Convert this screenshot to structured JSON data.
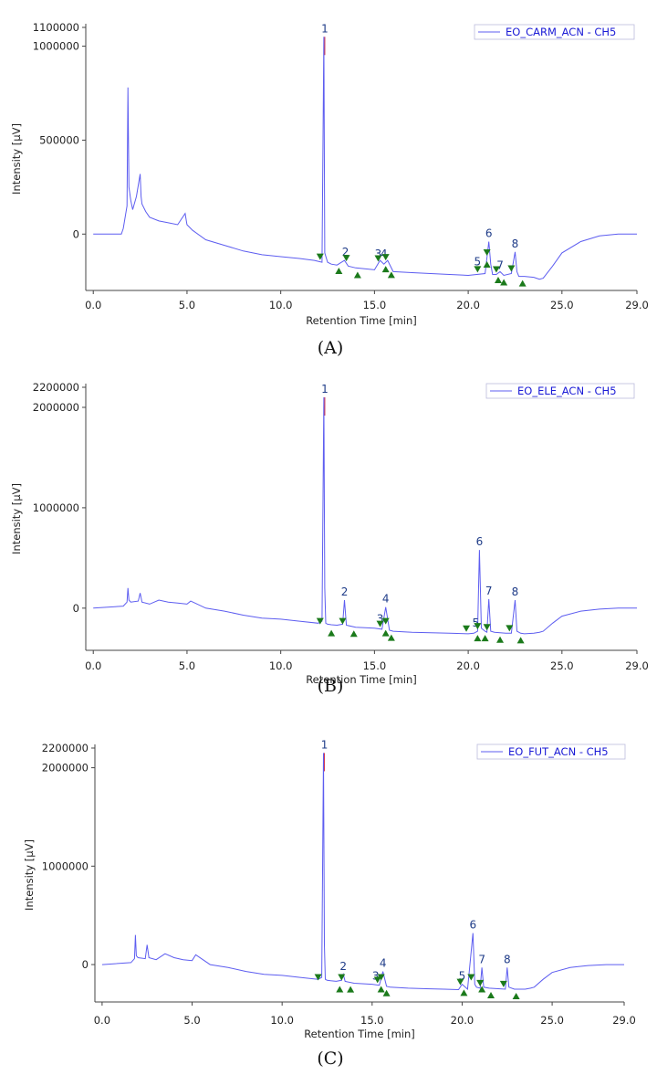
{
  "chart_data": [
    {
      "type": "line",
      "series": [
        {
          "name": "EO_CARM_ACN - CH5",
          "x": [
            0,
            1.5,
            1.6,
            1.8,
            1.85,
            1.9,
            2.0,
            2.1,
            2.3,
            2.5,
            2.55,
            2.6,
            2.8,
            3.0,
            3.5,
            4.0,
            4.5,
            4.9,
            5.0,
            5.3,
            6,
            7,
            8,
            9,
            10,
            11,
            11.8,
            12.0,
            12.2,
            12.3,
            12.35,
            12.5,
            12.7,
            13,
            13.4,
            13.6,
            14,
            15,
            15.3,
            15.5,
            15.7,
            16,
            17,
            18,
            19,
            20,
            20.9,
            21.1,
            21.2,
            21.3,
            21.5,
            21.7,
            21.9,
            22.3,
            22.5,
            22.6,
            22.7,
            23,
            23.5,
            23.8,
            24.0,
            24.5,
            25,
            26,
            27,
            28,
            29.0
          ],
          "y": [
            0,
            0,
            30000,
            150000,
            780000,
            250000,
            180000,
            130000,
            200000,
            320000,
            200000,
            160000,
            120000,
            90000,
            70000,
            60000,
            50000,
            110000,
            50000,
            20000,
            -30000,
            -60000,
            -90000,
            -110000,
            -120000,
            -130000,
            -140000,
            -145000,
            -150000,
            1050000,
            -100000,
            -150000,
            -160000,
            -165000,
            -140000,
            -170000,
            -180000,
            -190000,
            -140000,
            -160000,
            -140000,
            -200000,
            -205000,
            -210000,
            -215000,
            -220000,
            -210000,
            -40000,
            -160000,
            -215000,
            -215000,
            -200000,
            -220000,
            -210000,
            -95000,
            -200000,
            -225000,
            -225000,
            -230000,
            -240000,
            -235000,
            -170000,
            -100000,
            -40000,
            -10000,
            0,
            0
          ]
        }
      ],
      "peak_labels": [
        {
          "label": "1",
          "x": 12.35,
          "y": 1050000
        },
        {
          "label": "2",
          "x": 13.45,
          "y": -140000
        },
        {
          "label": "3",
          "x": 15.2,
          "y": -150000
        },
        {
          "label": "4",
          "x": 15.5,
          "y": -150000
        },
        {
          "label": "5",
          "x": 20.5,
          "y": -190000
        },
        {
          "label": "6",
          "x": 21.1,
          "y": -40000
        },
        {
          "label": "7",
          "x": 21.7,
          "y": -210000
        },
        {
          "label": "8",
          "x": 22.5,
          "y": -95000
        }
      ],
      "markers_down": [
        12.1,
        13.5,
        15.2,
        15.6,
        20.5,
        21.0,
        21.5,
        22.3
      ],
      "markers_up": [
        13.1,
        14.1,
        15.6,
        15.9,
        21.0,
        21.6,
        21.9,
        22.9
      ],
      "x_ticks": [
        {
          "value": 0,
          "label": "0.0"
        },
        {
          "value": 5,
          "label": "5.0"
        },
        {
          "value": 10,
          "label": "10.0"
        },
        {
          "value": 15,
          "label": "15.0"
        },
        {
          "value": 20,
          "label": "20.0"
        },
        {
          "value": 25,
          "label": "25.0"
        },
        {
          "value": 29,
          "label": "29.0"
        }
      ],
      "y_ticks": [
        {
          "value": 0,
          "label": "0"
        },
        {
          "value": 500000,
          "label": "500000"
        },
        {
          "value": 1000000,
          "label": "1000000"
        },
        {
          "value": 1100000,
          "label": "1100000"
        }
      ],
      "xlim": [
        -0.4,
        29.0
      ],
      "ylim": [
        -300000,
        1100000
      ],
      "xlabel": "Retention Time [min]",
      "ylabel": "Intensity [µV]",
      "caption": "(A)",
      "color": "#5d5df0",
      "peak_color": "#d2344a",
      "marker_color": "#1b7a1b"
    },
    {
      "type": "line",
      "series": [
        {
          "name": "EO_ELE_ACN - CH5",
          "x": [
            0,
            1.6,
            1.8,
            1.85,
            1.9,
            2.0,
            2.4,
            2.5,
            2.6,
            3,
            3.5,
            4,
            4.5,
            5,
            5.2,
            6,
            7,
            8,
            9,
            10,
            11,
            12,
            12.2,
            12.3,
            12.35,
            12.4,
            12.5,
            12.7,
            13,
            13.3,
            13.4,
            13.5,
            14,
            15,
            15.4,
            15.6,
            15.8,
            16,
            17,
            18,
            19,
            20,
            20.3,
            20.5,
            20.6,
            20.7,
            20.9,
            21.0,
            21.1,
            21.2,
            21.4,
            21.7,
            22,
            22.3,
            22.5,
            22.6,
            22.8,
            23,
            23.5,
            23.8,
            24.0,
            24.5,
            25,
            26,
            27,
            28,
            29.0
          ],
          "y": [
            0,
            20000,
            60000,
            200000,
            80000,
            60000,
            70000,
            150000,
            60000,
            40000,
            80000,
            60000,
            50000,
            40000,
            70000,
            0,
            -30000,
            -70000,
            -100000,
            -110000,
            -130000,
            -150000,
            -130000,
            2100000,
            200000,
            -150000,
            -160000,
            -165000,
            -170000,
            -160000,
            80000,
            -170000,
            -190000,
            -200000,
            -210000,
            10000,
            -220000,
            -230000,
            -240000,
            -245000,
            -250000,
            -255000,
            -250000,
            -230000,
            580000,
            -200000,
            -230000,
            -240000,
            90000,
            -230000,
            -240000,
            -245000,
            -250000,
            -250000,
            80000,
            -230000,
            -250000,
            -255000,
            -250000,
            -240000,
            -230000,
            -150000,
            -80000,
            -30000,
            -10000,
            0,
            0
          ]
        }
      ],
      "peak_labels": [
        {
          "label": "1",
          "x": 12.35,
          "y": 2100000
        },
        {
          "label": "2",
          "x": 13.4,
          "y": 80000
        },
        {
          "label": "3",
          "x": 15.3,
          "y": -190000
        },
        {
          "label": "4",
          "x": 15.6,
          "y": 10000
        },
        {
          "label": "5",
          "x": 20.4,
          "y": -230000
        },
        {
          "label": "6",
          "x": 20.6,
          "y": 580000
        },
        {
          "label": "7",
          "x": 21.1,
          "y": 90000
        },
        {
          "label": "8",
          "x": 22.5,
          "y": 80000
        }
      ],
      "markers_down": [
        12.1,
        13.3,
        15.3,
        15.6,
        19.9,
        20.5,
        21.0,
        22.2
      ],
      "markers_up": [
        12.7,
        13.9,
        15.6,
        15.9,
        20.5,
        20.9,
        21.7,
        22.8
      ],
      "x_ticks": [
        {
          "value": 0,
          "label": "0.0"
        },
        {
          "value": 5,
          "label": "5.0"
        },
        {
          "value": 10,
          "label": "10.0"
        },
        {
          "value": 15,
          "label": "15.0"
        },
        {
          "value": 20,
          "label": "20.0"
        },
        {
          "value": 25,
          "label": "25.0"
        },
        {
          "value": 29,
          "label": "29.0"
        }
      ],
      "y_ticks": [
        {
          "value": 0,
          "label": "0"
        },
        {
          "value": 1000000,
          "label": "1000000"
        },
        {
          "value": 2000000,
          "label": "2000000"
        },
        {
          "value": 2200000,
          "label": "2200000"
        }
      ],
      "xlim": [
        -0.4,
        29.0
      ],
      "ylim": [
        -420000,
        2200000
      ],
      "xlabel": "Retention Time [min]",
      "ylabel": "Intensity [µV]",
      "caption": "(B)",
      "color": "#5d5df0",
      "peak_color": "#d2344a",
      "marker_color": "#1b7a1b"
    },
    {
      "type": "line",
      "series": [
        {
          "name": "EO_FUT_ACN - CH5",
          "x": [
            0,
            1.6,
            1.8,
            1.85,
            1.9,
            2.0,
            2.4,
            2.5,
            2.6,
            3,
            3.5,
            4,
            4.5,
            5,
            5.2,
            6,
            7,
            8,
            9,
            10,
            11,
            12,
            12.2,
            12.3,
            12.35,
            12.4,
            12.5,
            12.7,
            13,
            13.3,
            13.4,
            13.5,
            14,
            15,
            15.4,
            15.6,
            15.8,
            16,
            17,
            18,
            19,
            19.8,
            20.0,
            20.3,
            20.6,
            20.7,
            20.8,
            21.0,
            21.1,
            21.2,
            21.5,
            22.0,
            22.4,
            22.5,
            22.6,
            22.9,
            23.5,
            23.8,
            24.0,
            24.5,
            25,
            26,
            27,
            28,
            29.0
          ],
          "y": [
            0,
            20000,
            60000,
            300000,
            90000,
            70000,
            60000,
            200000,
            70000,
            50000,
            110000,
            70000,
            50000,
            40000,
            100000,
            0,
            -30000,
            -70000,
            -100000,
            -110000,
            -130000,
            -150000,
            -130000,
            2150000,
            200000,
            -150000,
            -160000,
            -165000,
            -170000,
            -160000,
            -100000,
            -170000,
            -190000,
            -200000,
            -210000,
            -70000,
            -220000,
            -230000,
            -240000,
            -245000,
            -250000,
            -255000,
            -200000,
            -250000,
            320000,
            -200000,
            -230000,
            -240000,
            -30000,
            -230000,
            -240000,
            -245000,
            -250000,
            -30000,
            -230000,
            -250000,
            -250000,
            -240000,
            -230000,
            -150000,
            -80000,
            -30000,
            -10000,
            0,
            0
          ]
        }
      ],
      "peak_labels": [
        {
          "label": "1",
          "x": 12.35,
          "y": 2150000
        },
        {
          "label": "2",
          "x": 13.4,
          "y": -100000
        },
        {
          "label": "3",
          "x": 15.2,
          "y": -200000
        },
        {
          "label": "4",
          "x": 15.6,
          "y": -70000
        },
        {
          "label": "5",
          "x": 20.0,
          "y": -200000
        },
        {
          "label": "6",
          "x": 20.6,
          "y": 320000
        },
        {
          "label": "7",
          "x": 21.1,
          "y": -30000
        },
        {
          "label": "8",
          "x": 22.5,
          "y": -30000
        }
      ],
      "markers_down": [
        12.0,
        13.3,
        15.3,
        15.5,
        19.9,
        20.5,
        21.0,
        22.3
      ],
      "markers_up": [
        13.2,
        13.8,
        15.5,
        15.8,
        20.1,
        21.1,
        21.6,
        23.0
      ],
      "x_ticks": [
        {
          "value": 0,
          "label": "0.0"
        },
        {
          "value": 5,
          "label": "5.0"
        },
        {
          "value": 10,
          "label": "10.0"
        },
        {
          "value": 15,
          "label": "15.0"
        },
        {
          "value": 20,
          "label": "20.0"
        },
        {
          "value": 25,
          "label": "25.0"
        },
        {
          "value": 29,
          "label": "29.0"
        }
      ],
      "y_ticks": [
        {
          "value": 0,
          "label": "0"
        },
        {
          "value": 1000000,
          "label": "1000000"
        },
        {
          "value": 2000000,
          "label": "2000000"
        },
        {
          "value": 2200000,
          "label": "2200000"
        }
      ],
      "xlim": [
        -0.4,
        29.0
      ],
      "ylim": [
        -380000,
        2200000
      ],
      "xlabel": "Retention Time [min]",
      "ylabel": "Intensity [µV]",
      "caption": "(C)",
      "color": "#5d5df0",
      "peak_color": "#d2344a",
      "marker_color": "#1b7a1b"
    }
  ]
}
